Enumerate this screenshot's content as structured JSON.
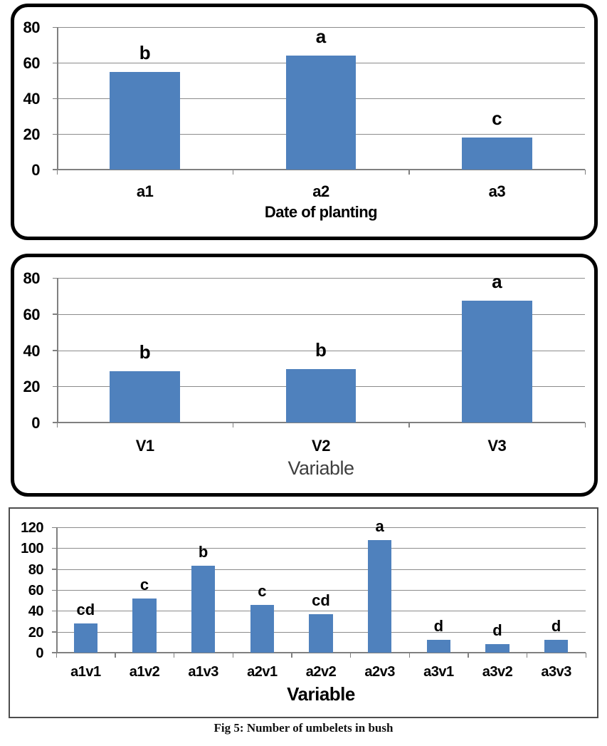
{
  "figure": {
    "caption": "Fig 5: Number of umbelets in bush"
  },
  "colors": {
    "bar_fill": "#4f81bd",
    "gridline": "#8c8c8c",
    "axis_line": "#808080",
    "tick_text": "#000000",
    "letter_text": "#000000",
    "muted_axis_label": "#3f3f3f",
    "rounded_panel_border": "#000000",
    "plain_panel_border": "#4d4d4d"
  },
  "chart_data": [
    {
      "type": "bar",
      "panel": "top",
      "title": "",
      "categories": [
        "a1",
        "a2",
        "a3"
      ],
      "values": [
        55,
        64,
        18
      ],
      "significance_letters": [
        "b",
        "a",
        "c"
      ],
      "xlabel": "Date of planting",
      "ylabel": "",
      "ylim": [
        0,
        80
      ],
      "yticks": [
        0,
        20,
        40,
        60,
        80
      ],
      "grid": true,
      "legend": "none"
    },
    {
      "type": "bar",
      "panel": "middle",
      "title": "",
      "categories": [
        "V1",
        "V2",
        "V3"
      ],
      "values": [
        28.5,
        29.5,
        67.5
      ],
      "significance_letters": [
        "b",
        "b",
        "a"
      ],
      "xlabel": "Variable",
      "ylabel": "",
      "ylim": [
        0,
        80
      ],
      "yticks": [
        0,
        20,
        40,
        60,
        80
      ],
      "grid": true,
      "legend": "none"
    },
    {
      "type": "bar",
      "panel": "bottom",
      "title": "",
      "categories": [
        "a1v1",
        "a1v2",
        "a1v3",
        "a2v1",
        "a2v2",
        "a2v3",
        "a3v1",
        "a3v2",
        "a3v3"
      ],
      "values": [
        28,
        52,
        83,
        46,
        37,
        108,
        12,
        8,
        12
      ],
      "significance_letters": [
        "cd",
        "c",
        "b",
        "c",
        "cd",
        "a",
        "d",
        "d",
        "d"
      ],
      "xlabel": "Variable",
      "ylabel": "",
      "ylim": [
        0,
        120
      ],
      "yticks": [
        0,
        20,
        40,
        60,
        80,
        100,
        120
      ],
      "grid": true,
      "legend": "none"
    }
  ]
}
